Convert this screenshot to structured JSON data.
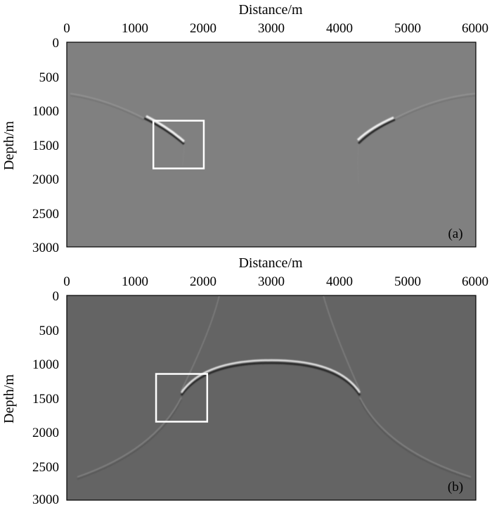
{
  "panels": [
    {
      "id": "a",
      "tag": "(a)",
      "x_axis_title": "Distance/m",
      "y_axis_title": "Depth/m",
      "x_ticks": [
        "0",
        "1000",
        "2000",
        "3000",
        "4000",
        "5000",
        "6000"
      ],
      "y_ticks": [
        "0",
        "500",
        "1000",
        "1500",
        "2000",
        "2500",
        "3000"
      ],
      "x_range": [
        0,
        6000
      ],
      "y_range": [
        0,
        3000
      ],
      "highlight_box": {
        "x_from": 1270,
        "x_to": 2010,
        "y_from": 1150,
        "y_to": 1850
      },
      "background_color": "#808080"
    },
    {
      "id": "b",
      "tag": "(b)",
      "x_axis_title": "Distance/m",
      "y_axis_title": "Depth/m",
      "x_ticks": [
        "0",
        "1000",
        "2000",
        "3000",
        "4000",
        "5000",
        "6000"
      ],
      "y_ticks": [
        "0",
        "500",
        "1000",
        "1500",
        "2000",
        "2500",
        "3000"
      ],
      "x_range": [
        0,
        6000
      ],
      "y_range": [
        0,
        3000
      ],
      "highlight_box": {
        "x_from": 1310,
        "x_to": 2060,
        "y_from": 1150,
        "y_to": 1850
      },
      "background_color": "#646464"
    }
  ]
}
